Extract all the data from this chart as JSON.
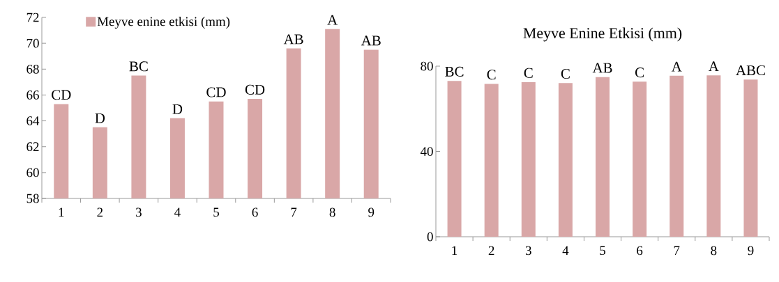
{
  "chart_data": [
    {
      "type": "bar",
      "categories": [
        "1",
        "2",
        "3",
        "4",
        "5",
        "6",
        "7",
        "8",
        "9"
      ],
      "series": [
        {
          "name": "Meyve enine etkisi (mm)",
          "color": "#d9a7a7",
          "values": [
            65.3,
            63.5,
            67.5,
            64.2,
            65.5,
            65.7,
            69.6,
            71.1,
            69.5
          ]
        }
      ],
      "ylim": [
        58,
        72
      ],
      "yticks": [
        58,
        60,
        62,
        64,
        66,
        68,
        70,
        72
      ],
      "legend": "top left",
      "annotations": [
        {
          "text": "CD",
          "x": "1",
          "y": 65.3
        },
        {
          "text": "D",
          "x": "2",
          "y": 63.5
        },
        {
          "text": "BC",
          "x": "3",
          "y": 67.5
        },
        {
          "text": "D",
          "x": "4",
          "y": 64.2
        },
        {
          "text": "CD",
          "x": "5",
          "y": 65.5
        },
        {
          "text": "CD",
          "x": "6",
          "y": 65.7
        },
        {
          "text": "AB",
          "x": "7",
          "y": 69.6
        },
        {
          "text": "A",
          "x": "8",
          "y": 71.1
        },
        {
          "text": "AB",
          "x": "9",
          "y": 69.5
        }
      ]
    },
    {
      "type": "bar",
      "title": "Meyve Enine Etkisi (mm)",
      "categories": [
        "1",
        "2",
        "3",
        "4",
        "5",
        "6",
        "7",
        "8",
        "9"
      ],
      "series": [
        {
          "color": "#d9a7a7",
          "values": [
            73.1,
            71.7,
            72.5,
            72.1,
            74.9,
            72.7,
            75.5,
            75.7,
            73.7
          ]
        }
      ],
      "ylim": [
        0,
        80
      ],
      "yticks": [
        0,
        40,
        80
      ],
      "annotations": [
        {
          "text": "BC",
          "x": "1",
          "y": 73.1
        },
        {
          "text": "C",
          "x": "2",
          "y": 71.7
        },
        {
          "text": "C",
          "x": "3",
          "y": 72.5
        },
        {
          "text": "C",
          "x": "4",
          "y": 72.1
        },
        {
          "text": "AB",
          "x": "5",
          "y": 74.9
        },
        {
          "text": "C",
          "x": "6",
          "y": 72.7
        },
        {
          "text": "A",
          "x": "7",
          "y": 75.5
        },
        {
          "text": "A",
          "x": "8",
          "y": 75.7
        },
        {
          "text": "ABC",
          "x": "9",
          "y": 73.7
        }
      ]
    }
  ]
}
